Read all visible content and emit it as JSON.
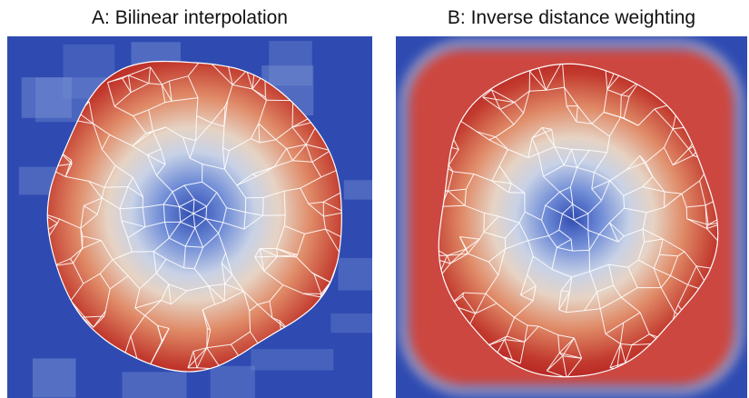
{
  "figure": {
    "panels": [
      {
        "id": "a",
        "title": "A: Bilinear interpolation",
        "method": "bilinear"
      },
      {
        "id": "b",
        "title": "B: Inverse distance weighting",
        "method": "inverse-distance"
      }
    ],
    "colors": {
      "low": "#2f4bb1",
      "mid": "#dcdcdc",
      "high": "#b31d1f",
      "cell_outline": "#ffffff"
    }
  }
}
